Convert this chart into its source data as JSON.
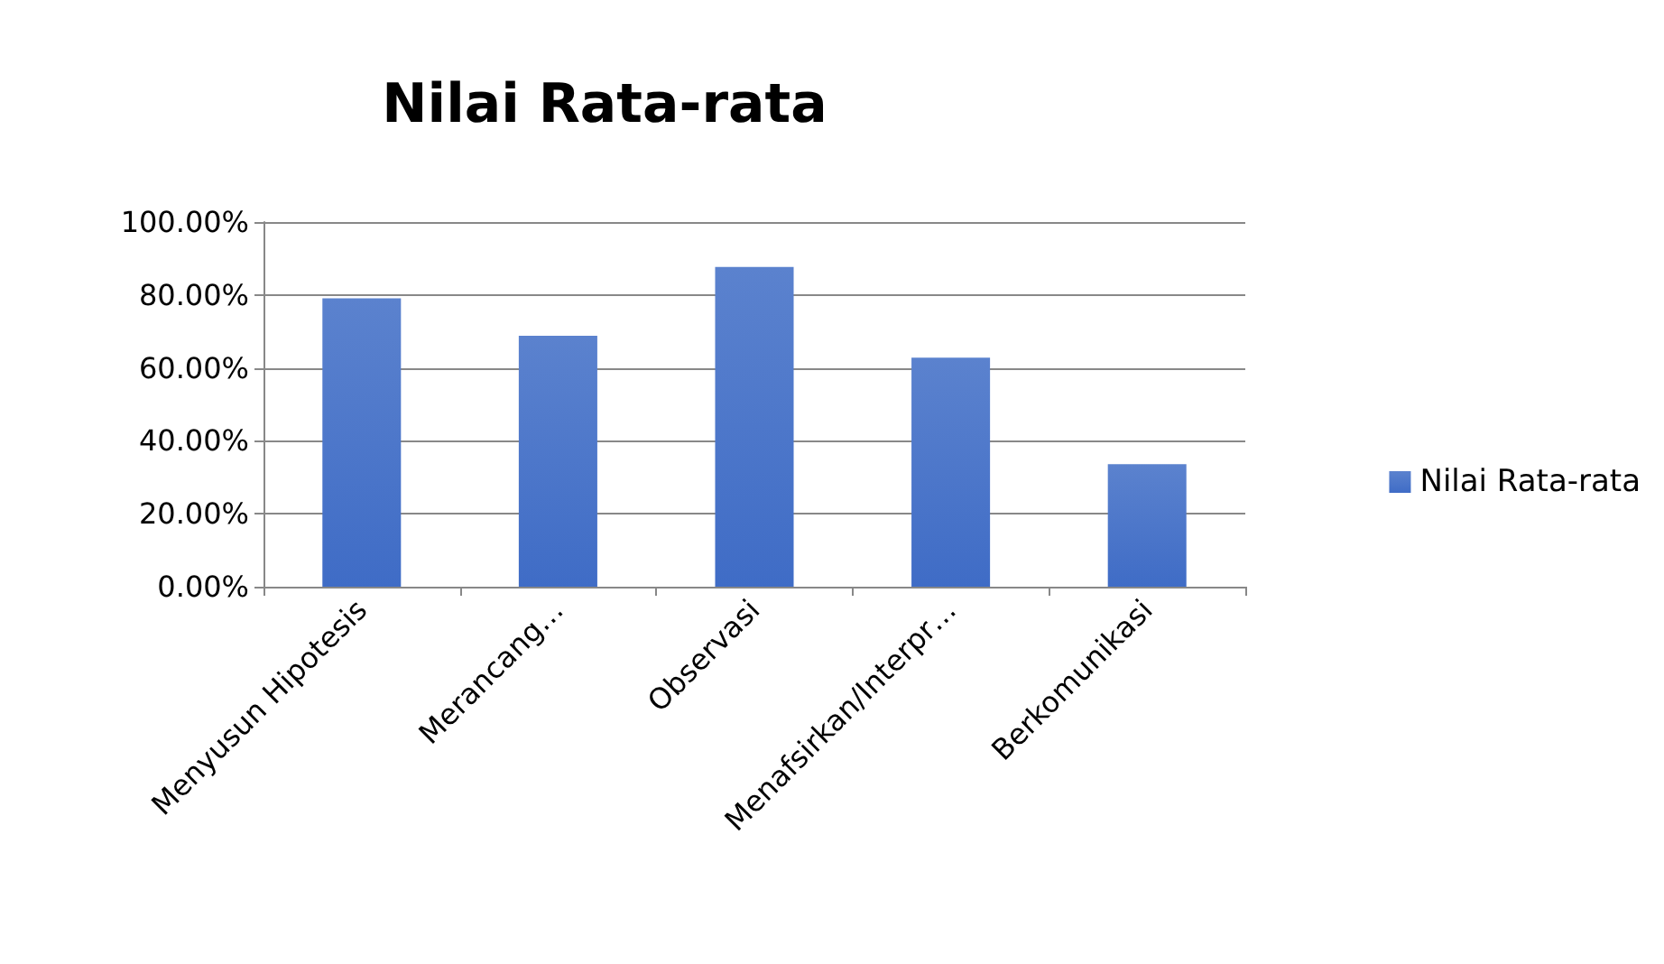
{
  "chart_data": {
    "type": "bar",
    "title": "Nilai Rata-rata",
    "categories": [
      "Menyusun Hipotesis",
      "Merancang…",
      "Observasi",
      "Menafsirkan/Interpr…",
      "Berkomunikasi"
    ],
    "series": [
      {
        "name": "Nilai Rata-rata",
        "color": "#3f6cc6",
        "values": [
          79.1,
          68.8,
          87.7,
          62.8,
          33.6
        ]
      }
    ],
    "ylim": [
      0,
      100
    ],
    "yticks": [
      {
        "value": 0,
        "label": "0.00%"
      },
      {
        "value": 20,
        "label": "20.00%"
      },
      {
        "value": 40,
        "label": "40.00%"
      },
      {
        "value": 60,
        "label": "60.00%"
      },
      {
        "value": 80,
        "label": "80.00%"
      },
      {
        "value": 100,
        "label": "100.00%"
      }
    ],
    "grid": "y",
    "legend": "right"
  }
}
